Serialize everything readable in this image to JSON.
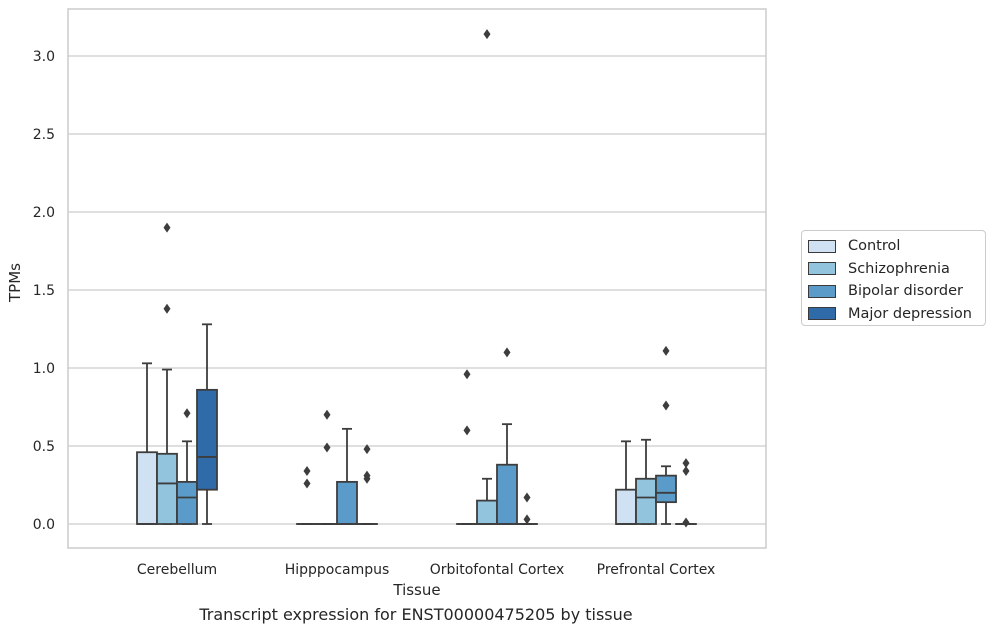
{
  "caption": "Transcript expression for ENST00000475205 by tissue",
  "chart_data": {
    "type": "box",
    "xlabel": "Tissue",
    "ylabel": "TPMs",
    "ylim": [
      -0.15,
      3.3
    ],
    "yticks": [
      "0.0",
      "0.5",
      "1.0",
      "1.5",
      "2.0",
      "2.5",
      "3.0"
    ],
    "grid": "horizontal",
    "legend_position": "right",
    "categories": [
      "Cerebellum",
      "Hipppocampus",
      "Orbitofontal Cortex",
      "Prefrontal Cortex"
    ],
    "series": [
      {
        "name": "Control",
        "color": "#cfe1f2",
        "boxes": [
          {
            "whislo": 0,
            "q1": 0,
            "med": 0,
            "q3": 0.46,
            "whishi": 1.03,
            "fliers": []
          },
          {
            "whislo": 0,
            "q1": 0,
            "med": 0,
            "q3": 0,
            "whishi": 0,
            "fliers": [
              0.34,
              0.26
            ]
          },
          {
            "whislo": 0,
            "q1": 0,
            "med": 0,
            "q3": 0,
            "whishi": 0,
            "fliers": [
              0.96,
              0.6
            ]
          },
          {
            "whislo": 0,
            "q1": 0,
            "med": 0,
            "q3": 0.22,
            "whishi": 0.53,
            "fliers": []
          }
        ]
      },
      {
        "name": "Schizophrenia",
        "color": "#93c4de",
        "boxes": [
          {
            "whislo": 0,
            "q1": 0,
            "med": 0.26,
            "q3": 0.45,
            "whishi": 0.99,
            "fliers": [
              1.9,
              1.38
            ]
          },
          {
            "whislo": 0,
            "q1": 0,
            "med": 0,
            "q3": 0,
            "whishi": 0,
            "fliers": [
              0.7,
              0.49
            ]
          },
          {
            "whislo": 0,
            "q1": 0,
            "med": 0,
            "q3": 0.15,
            "whishi": 0.29,
            "fliers": [
              3.14
            ]
          },
          {
            "whislo": 0,
            "q1": 0,
            "med": 0.17,
            "q3": 0.29,
            "whishi": 0.54,
            "fliers": []
          }
        ]
      },
      {
        "name": "Bipolar disorder",
        "color": "#5a9bc9",
        "boxes": [
          {
            "whislo": 0,
            "q1": 0,
            "med": 0.17,
            "q3": 0.27,
            "whishi": 0.53,
            "fliers": [
              0.71
            ]
          },
          {
            "whislo": 0,
            "q1": 0,
            "med": 0,
            "q3": 0.27,
            "whishi": 0.61,
            "fliers": []
          },
          {
            "whislo": 0,
            "q1": 0,
            "med": 0,
            "q3": 0.38,
            "whishi": 0.64,
            "fliers": [
              1.1
            ]
          },
          {
            "whislo": 0,
            "q1": 0.14,
            "med": 0.2,
            "q3": 0.31,
            "whishi": 0.37,
            "fliers": [
              1.11,
              0.76
            ]
          }
        ]
      },
      {
        "name": "Major depression",
        "color": "#2f6ba8",
        "boxes": [
          {
            "whislo": 0,
            "q1": 0.22,
            "med": 0.43,
            "q3": 0.86,
            "whishi": 1.28,
            "fliers": []
          },
          {
            "whislo": 0,
            "q1": 0,
            "med": 0,
            "q3": 0,
            "whishi": 0,
            "fliers": [
              0.48,
              0.31,
              0.29
            ]
          },
          {
            "whislo": 0,
            "q1": 0,
            "med": 0,
            "q3": 0,
            "whishi": 0,
            "fliers": [
              0.17,
              0.03
            ]
          },
          {
            "whislo": 0,
            "q1": 0,
            "med": 0,
            "q3": 0,
            "whishi": 0,
            "fliers": [
              0.39,
              0.34,
              0.01
            ]
          }
        ]
      }
    ]
  }
}
